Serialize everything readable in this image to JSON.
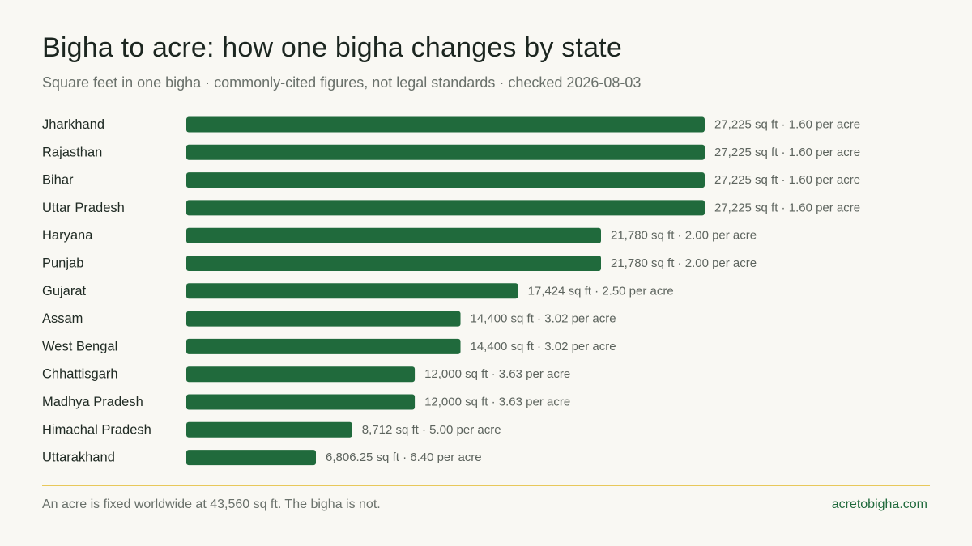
{
  "chart_data": {
    "type": "bar",
    "orientation": "horizontal",
    "title": "Bigha to acre: how one bigha changes by state",
    "subtitle": "Square feet in one bigha · commonly-cited figures, not legal standards · checked 2026-08-03",
    "categories": [
      "Jharkhand",
      "Rajasthan",
      "Bihar",
      "Uttar Pradesh",
      "Haryana",
      "Punjab",
      "Gujarat",
      "Assam",
      "West Bengal",
      "Chhattisgarh",
      "Madhya Pradesh",
      "Himachal Pradesh",
      "Uttarakhand"
    ],
    "values": [
      27225,
      27225,
      27225,
      27225,
      21780,
      21780,
      17424,
      14400,
      14400,
      12000,
      12000,
      8712,
      6806.25
    ],
    "value_labels": [
      "27,225 sq ft · 1.60 per acre",
      "27,225 sq ft · 1.60 per acre",
      "27,225 sq ft · 1.60 per acre",
      "27,225 sq ft · 1.60 per acre",
      "21,780 sq ft · 2.00 per acre",
      "21,780 sq ft · 2.00 per acre",
      "17,424 sq ft · 2.50 per acre",
      "14,400 sq ft · 3.02 per acre",
      "14,400 sq ft · 3.02 per acre",
      "12,000 sq ft · 3.63 per acre",
      "12,000 sq ft · 3.63 per acre",
      "8,712 sq ft · 5.00 per acre",
      "6,806.25 sq ft · 6.40 per acre"
    ],
    "xlim": [
      0,
      27225
    ],
    "grid": false,
    "legend": "none",
    "bar_color": "#206a3c"
  },
  "footer": {
    "note": "An acre is fixed worldwide at 43,560 sq ft. The bigha is not.",
    "site": "acretobigha.com"
  },
  "colors": {
    "background": "#f9f8f3",
    "bar": "#206a3c",
    "divider": "#e8c85a",
    "link": "#206a3c"
  }
}
